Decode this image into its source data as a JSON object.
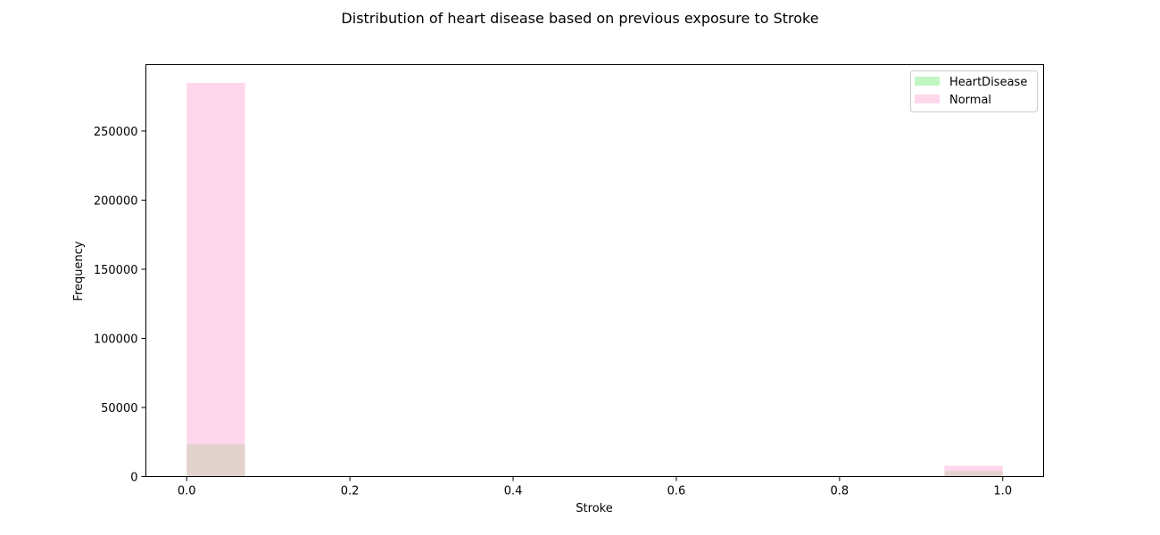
{
  "chart_data": {
    "type": "bar",
    "title": "Distribution of heart disease based on previous exposure to Stroke",
    "xlabel": "Stroke",
    "ylabel": "Frequency",
    "xlim": [
      -0.05,
      1.05
    ],
    "ylim": [
      0,
      298000
    ],
    "xticks": [
      0.0,
      0.2,
      0.4,
      0.6,
      0.8,
      1.0
    ],
    "xtick_labels": [
      "0.0",
      "0.2",
      "0.4",
      "0.6",
      "0.8",
      "1.0"
    ],
    "yticks": [
      0,
      50000,
      100000,
      150000,
      200000,
      250000
    ],
    "ytick_labels": [
      "0",
      "50000",
      "100000",
      "150000",
      "200000",
      "250000"
    ],
    "grid": false,
    "legend_position": "top-right",
    "bin_width": 0.0714,
    "series": [
      {
        "name": "HeartDisease",
        "color": "#90ee90",
        "opacity": 0.55,
        "bins": [
          {
            "x_start": 0.0,
            "x_end": 0.0714,
            "value": 23400
          },
          {
            "x_start": 0.9286,
            "x_end": 1.0,
            "value": 4000
          }
        ]
      },
      {
        "name": "Normal",
        "color": "#ffb6d9",
        "opacity": 0.55,
        "bins": [
          {
            "x_start": 0.0,
            "x_end": 0.0714,
            "value": 284800
          },
          {
            "x_start": 0.9286,
            "x_end": 1.0,
            "value": 7900
          }
        ]
      }
    ]
  }
}
